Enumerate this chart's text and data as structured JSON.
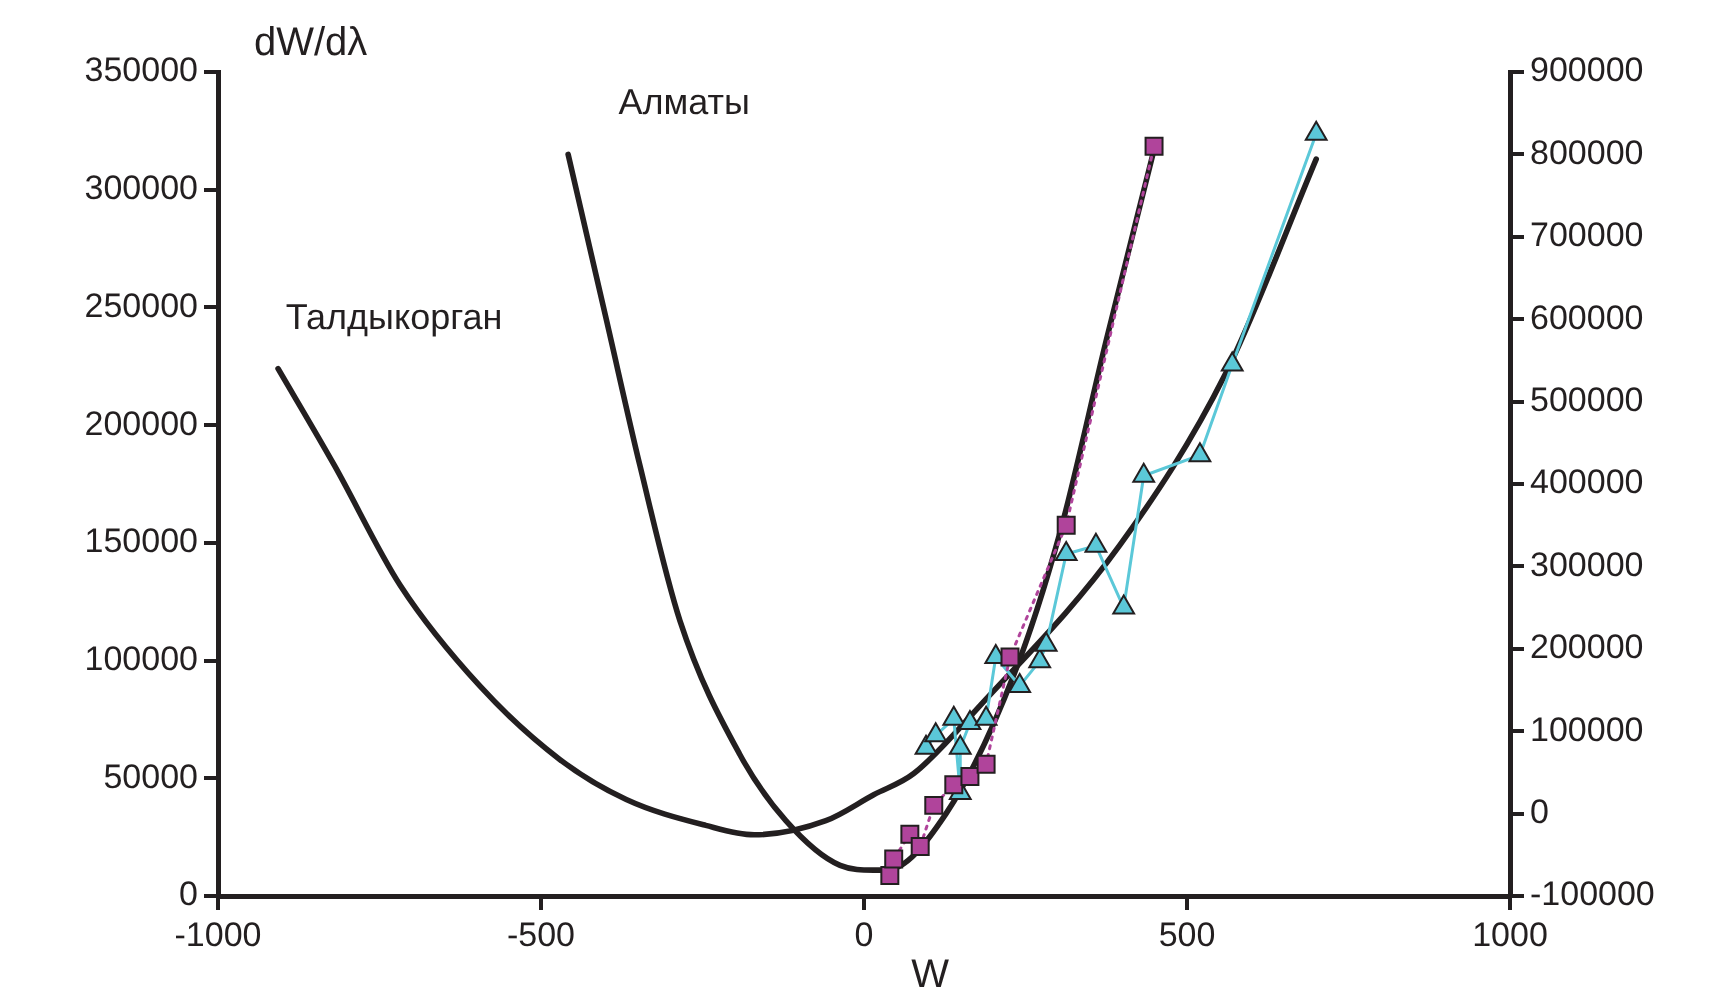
{
  "chart_data": {
    "type": "line",
    "ylabel": "dW/dλ",
    "xlabel": "W",
    "xlim": [
      -1000,
      1000
    ],
    "xticks": [
      -1000,
      -500,
      0,
      500,
      1000
    ],
    "ylim": [
      0,
      350000
    ],
    "yticks": [
      0,
      50000,
      100000,
      150000,
      200000,
      250000,
      300000,
      350000
    ],
    "y2lim": [
      -100000,
      900000
    ],
    "y2ticks": [
      -100000,
      0,
      100000,
      200000,
      300000,
      400000,
      500000,
      600000,
      700000,
      800000,
      900000
    ],
    "grid": false,
    "legend": false,
    "series": [
      {
        "name": "Талдыкорган",
        "color": "#231f20",
        "marker": "none",
        "line_style": "solid",
        "x": [
          -907,
          -820,
          -718,
          -594,
          -471,
          -368,
          -245,
          -170,
          -59,
          15,
          77,
          180,
          396,
          560,
          700
        ],
        "values": [
          224000,
          183000,
          132000,
          89000,
          58000,
          41000,
          30000,
          26000,
          32000,
          43000,
          52000,
          81000,
          149000,
          222000,
          313000
        ]
      },
      {
        "name": "Алматы",
        "color": "#231f20",
        "marker": "none",
        "line_style": "solid",
        "x": [
          -458,
          -399,
          -347,
          -285,
          -192,
          -121,
          -37,
          15,
          34,
          127,
          232,
          303,
          375,
          449
        ],
        "values": [
          315000,
          245000,
          183000,
          117000,
          60000,
          32000,
          13000,
          11000,
          11000,
          35000,
          94000,
          154000,
          236000,
          317000
        ]
      },
      {
        "color": "#b0449b",
        "marker": "square",
        "line_style": "dotted",
        "axis": "y2",
        "x": [
          40,
          46,
          71,
          87,
          108,
          139,
          164,
          189,
          226,
          313,
          449
        ],
        "values": [
          -75000,
          -55000,
          -25000,
          -40000,
          10000,
          35000,
          45000,
          60000,
          190000,
          350000,
          810000
        ]
      },
      {
        "color": "#5bc8d8",
        "marker": "triangle",
        "line_style": "solid",
        "axis": "y2",
        "x": [
          96,
          111,
          139,
          149,
          149,
          164,
          189,
          204,
          241,
          272,
          282,
          313,
          359,
          402,
          433,
          520,
          570,
          700
        ],
        "values": [
          80000,
          95000,
          115000,
          25000,
          80000,
          110000,
          115000,
          190000,
          155000,
          185000,
          205000,
          315000,
          325000,
          250000,
          410000,
          435000,
          545000,
          825000
        ]
      }
    ]
  }
}
